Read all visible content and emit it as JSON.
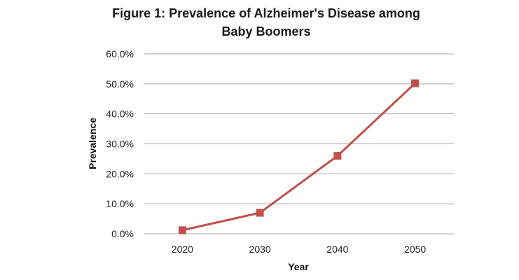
{
  "chart_data": {
    "type": "line",
    "title": "Figure 1: Prevalence of Alzheimer's Disease among Baby Boomers",
    "title_lines": [
      "Figure 1: Prevalence of Alzheimer's Disease among",
      "Baby Boomers"
    ],
    "xlabel": "Year",
    "ylabel": "Prevalence",
    "categories": [
      "2020",
      "2030",
      "2040",
      "2050"
    ],
    "series": [
      {
        "values": [
          0.012,
          0.07,
          0.26,
          0.502
        ],
        "color": "#c0504d"
      }
    ],
    "ylim": [
      0,
      0.6
    ],
    "yticks": [
      0,
      0.1,
      0.2,
      0.3,
      0.4,
      0.5,
      0.6
    ],
    "ytick_labels": [
      "0.0%",
      "10.0%",
      "20.0%",
      "30.0%",
      "40.0%",
      "50.0%",
      "60.0%"
    ],
    "grid": true,
    "legend": "none",
    "marker": "square"
  }
}
